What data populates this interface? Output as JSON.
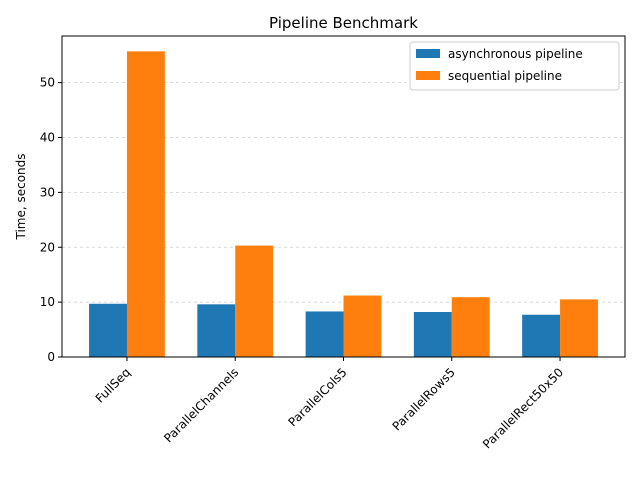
{
  "chart_data": {
    "type": "bar",
    "title": "Pipeline Benchmark",
    "xlabel": "",
    "ylabel": "Time, seconds",
    "categories": [
      "FullSeq",
      "ParallelChannels",
      "ParallelCols5",
      "ParallelRows5",
      "ParallelRect50x50"
    ],
    "series": [
      {
        "name": "asynchronous pipeline",
        "color": "#1f77b4",
        "values": [
          9.7,
          9.6,
          8.3,
          8.2,
          7.7
        ]
      },
      {
        "name": "sequential pipeline",
        "color": "#ff7f0e",
        "values": [
          55.7,
          20.3,
          11.2,
          10.9,
          10.5
        ]
      }
    ],
    "ylim": [
      0,
      58.5
    ],
    "yticks": [
      0,
      10,
      20,
      30,
      40,
      50
    ],
    "grid": "y dashed",
    "legend_position": "top-right"
  }
}
